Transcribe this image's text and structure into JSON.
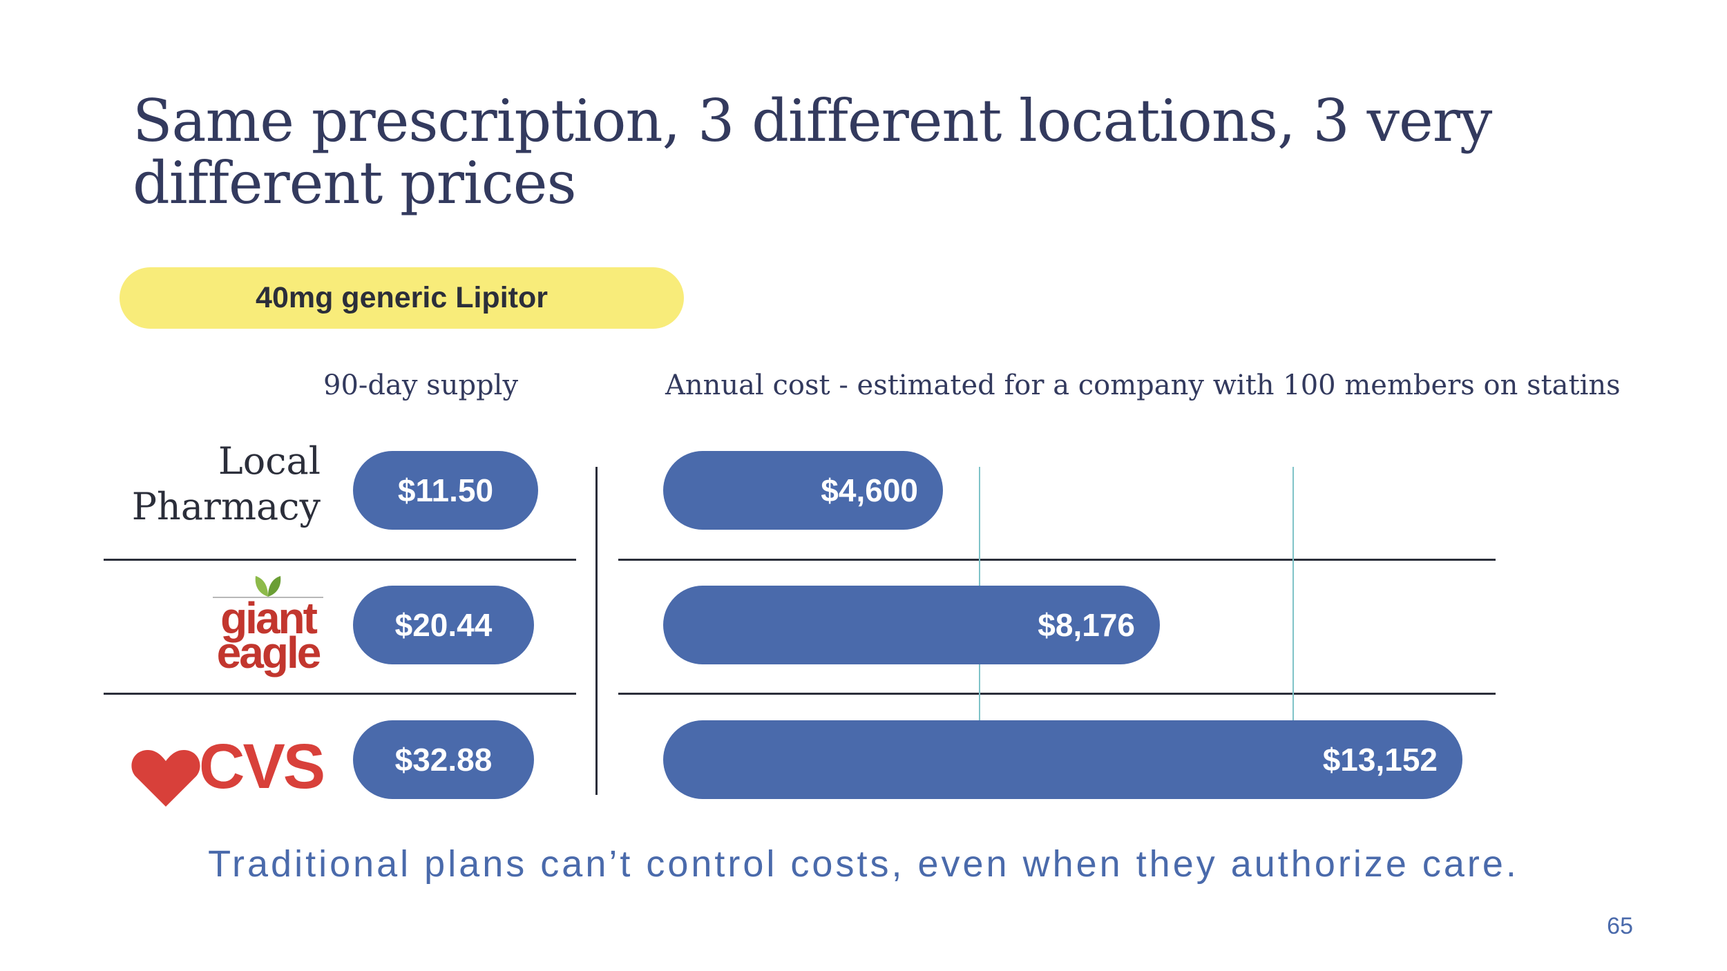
{
  "slide": {
    "title": "Same prescription, 3 different locations, 3 very different prices",
    "drug_label": "40mg generic Lipitor",
    "supply_header": "90-day supply",
    "annual_header": "Annual cost - estimated for a company with 100 members on statins",
    "footer": "Traditional plans can’t control costs, even when they authorize care.",
    "page_number": "65"
  },
  "logos": {
    "giant_eagle": {
      "line1": "giant",
      "line2": "eagle"
    },
    "cvs": {
      "text": "CVS"
    }
  },
  "chart_data": {
    "type": "bar",
    "categories": [
      "Local Pharmacy",
      "Giant Eagle",
      "CVS"
    ],
    "series": [
      {
        "name": "90-day supply",
        "values": [
          11.5,
          20.44,
          32.88
        ],
        "labels": [
          "$11.50",
          "$20.44",
          "$32.88"
        ]
      },
      {
        "name": "Annual cost - estimated for a company with 100 members on statins",
        "values": [
          4600,
          8176,
          13152
        ],
        "labels": [
          "$4,600",
          "$8,176",
          "$13,152"
        ]
      }
    ],
    "colors": {
      "bar": "#4a6aab",
      "gridline": "#7fc3c8",
      "highlight": "#f8ec7a"
    }
  }
}
